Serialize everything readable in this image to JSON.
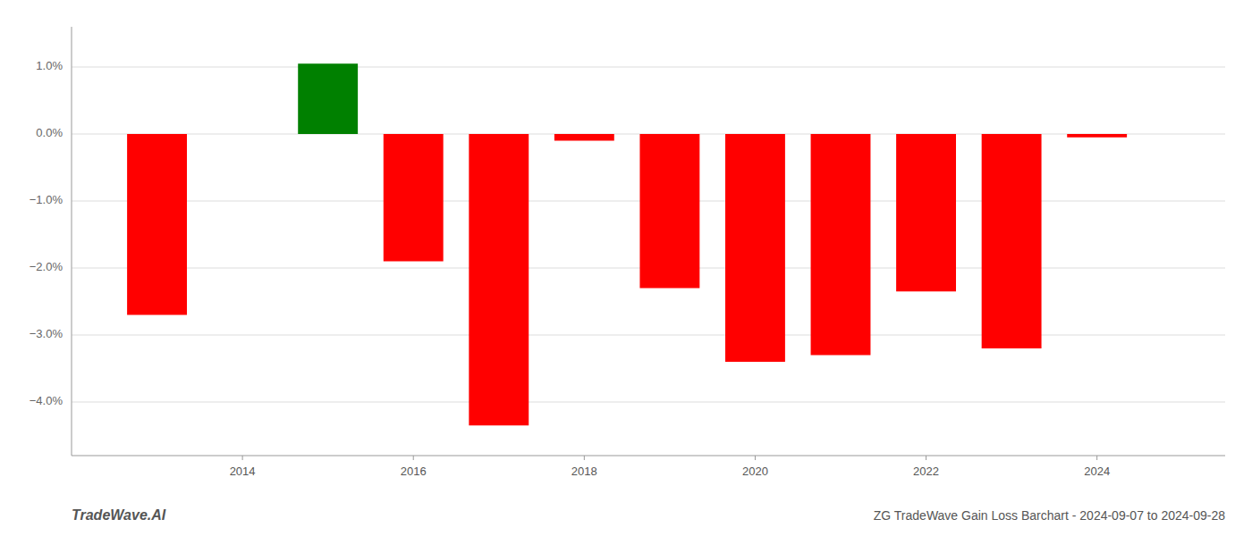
{
  "chart_data": {
    "type": "bar",
    "title": "ZG TradeWave Gain Loss Barchart - 2024-09-07 to 2024-09-28",
    "annotations": [
      "TradeWave.AI"
    ],
    "x": [
      2013,
      2015,
      2016,
      2017,
      2018,
      2019,
      2020,
      2021,
      2022,
      2023,
      2024
    ],
    "values": [
      -2.7,
      1.05,
      -1.9,
      -4.35,
      -0.1,
      -2.3,
      -3.4,
      -3.3,
      -2.35,
      -3.2,
      -0.05
    ],
    "colors": [
      "red",
      "green",
      "red",
      "red",
      "red",
      "red",
      "red",
      "red",
      "red",
      "red",
      "red"
    ],
    "xlim": [
      2012.0,
      2025.5
    ],
    "xticks": [
      2014,
      2016,
      2018,
      2020,
      2022,
      2024
    ],
    "ylim": [
      -4.8,
      1.6
    ],
    "yticks": [
      {
        "value": 1.0,
        "label": "1.0%"
      },
      {
        "value": 0.0,
        "label": "0.0%"
      },
      {
        "value": -1.0,
        "label": "−1.0%"
      },
      {
        "value": -2.0,
        "label": "−2.0%"
      },
      {
        "value": -3.0,
        "label": "−3.0%"
      },
      {
        "value": -4.0,
        "label": "−4.0%"
      }
    ],
    "grid": true
  }
}
